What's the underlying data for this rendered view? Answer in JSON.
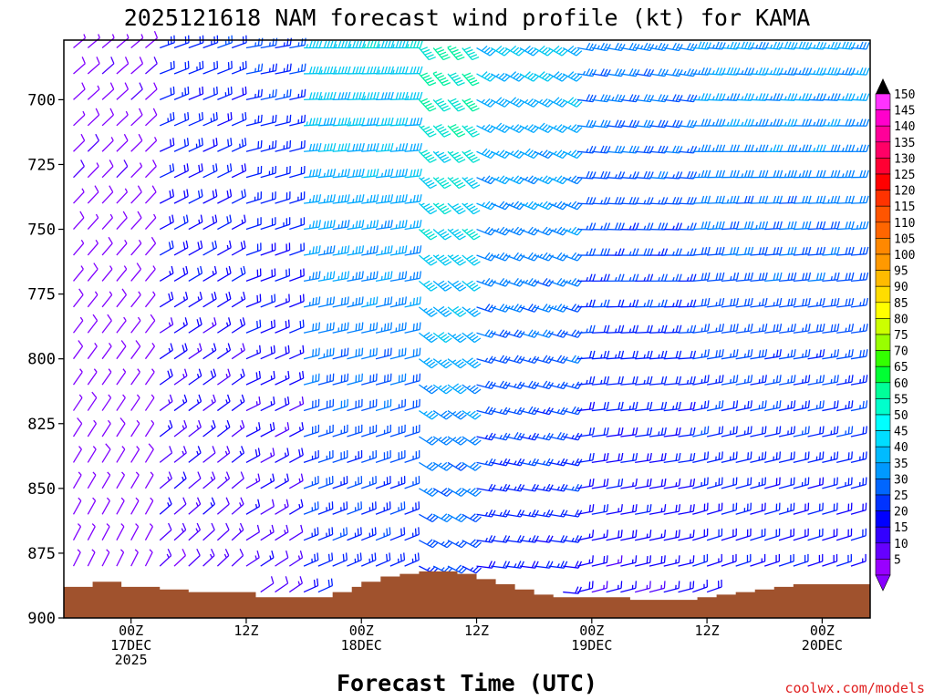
{
  "chart_data": {
    "type": "wind-barb-profile",
    "title": "2025121618 NAM forecast wind profile (kt) for KAMA",
    "xlabel": "Forecast Time (UTC)",
    "ylabel": "",
    "watermark": "coolwx.com/models",
    "y_axis": {
      "direction": "inverted",
      "range": [
        900,
        677
      ],
      "ticks": [
        "700",
        "725",
        "750",
        "775",
        "800",
        "825",
        "850",
        "875",
        "900"
      ]
    },
    "x_axis": {
      "range_hours": [
        -7,
        77
      ],
      "ticks": [
        {
          "hour": 0,
          "lines": [
            "00Z",
            "17DEC",
            "2025"
          ]
        },
        {
          "hour": 12,
          "lines": [
            "12Z"
          ]
        },
        {
          "hour": 24,
          "lines": [
            "00Z",
            "18DEC"
          ]
        },
        {
          "hour": 36,
          "lines": [
            "12Z"
          ]
        },
        {
          "hour": 48,
          "lines": [
            "00Z",
            "19DEC"
          ]
        },
        {
          "hour": 60,
          "lines": [
            "12Z"
          ]
        },
        {
          "hour": 72,
          "lines": [
            "00Z",
            "20DEC"
          ]
        }
      ]
    },
    "colorbar": {
      "labels": [
        "150",
        "145",
        "140",
        "135",
        "130",
        "125",
        "120",
        "115",
        "110",
        "105",
        "100",
        "95",
        "90",
        "85",
        "80",
        "75",
        "70",
        "65",
        "60",
        "55",
        "50",
        "45",
        "40",
        "35",
        "30",
        "25",
        "20",
        "15",
        "10",
        "5"
      ],
      "colors": [
        "#ff33ff",
        "#ff00cc",
        "#ff0099",
        "#ff0066",
        "#ff0033",
        "#ff0000",
        "#ff3300",
        "#ff5500",
        "#ff6600",
        "#ff8800",
        "#ff9900",
        "#ffbb00",
        "#ffdd00",
        "#ffff00",
        "#ccff00",
        "#99ff00",
        "#33ff00",
        "#00ff33",
        "#00ff99",
        "#00ffcc",
        "#00ffff",
        "#00ddff",
        "#00bbff",
        "#0099ff",
        "#0066ff",
        "#0033ff",
        "#0000ff",
        "#3300ff",
        "#6600ff",
        "#9900ff"
      ],
      "colors_bottom_up": [
        "#8000ff",
        "#5000ff",
        "#1000ff",
        "#0020ff",
        "#0050ff",
        "#0080ff",
        "#00a8ff",
        "#00c8f0",
        "#00e0d0",
        "#00f0a0"
      ]
    },
    "terrain_color": "#a0522d",
    "terrain_pressure_by_hour": [
      [
        -7,
        888
      ],
      [
        -5,
        888
      ],
      [
        -4,
        886
      ],
      [
        -2,
        886
      ],
      [
        -1,
        888
      ],
      [
        2,
        888
      ],
      [
        3,
        889
      ],
      [
        5,
        889
      ],
      [
        6,
        890
      ],
      [
        12,
        890
      ],
      [
        13,
        892
      ],
      [
        20,
        892
      ],
      [
        21,
        890
      ],
      [
        23,
        888
      ],
      [
        24,
        886
      ],
      [
        26,
        884
      ],
      [
        28,
        883
      ],
      [
        30,
        882
      ],
      [
        33,
        882
      ],
      [
        34,
        883
      ],
      [
        36,
        885
      ],
      [
        38,
        887
      ],
      [
        40,
        889
      ],
      [
        42,
        891
      ],
      [
        44,
        892
      ],
      [
        51,
        892
      ],
      [
        52,
        893
      ],
      [
        56,
        893
      ],
      [
        58,
        893
      ],
      [
        59,
        892
      ],
      [
        61,
        891
      ],
      [
        63,
        890
      ],
      [
        65,
        889
      ],
      [
        67,
        888
      ],
      [
        69,
        887
      ],
      [
        71,
        887
      ],
      [
        77,
        887
      ]
    ],
    "wind_field": {
      "hour_step": 1.5,
      "hour_start": -6,
      "hour_end": 76,
      "pressure_levels": [
        680,
        690,
        700,
        710,
        720,
        730,
        740,
        750,
        760,
        770,
        780,
        790,
        800,
        810,
        820,
        830,
        840,
        850,
        860,
        870,
        880,
        890,
        896
      ],
      "regimes": [
        {
          "hours": [
            -6,
            3
          ],
          "speed_kt": 8,
          "dir_deg": 230
        },
        {
          "hours": [
            3,
            12
          ],
          "speed_kt": 20,
          "dir_deg": 250
        },
        {
          "hours": [
            12,
            18
          ],
          "speed_kt": 22,
          "dir_deg": 260
        },
        {
          "hours": [
            18,
            30
          ],
          "speed_kt": 38,
          "dir_deg": 270
        },
        {
          "hours": [
            30,
            36
          ],
          "speed_kt": 45,
          "dir_deg": 320
        },
        {
          "hours": [
            36,
            46
          ],
          "speed_kt": 35,
          "dir_deg": 300
        },
        {
          "hours": [
            46,
            58
          ],
          "speed_kt": 28,
          "dir_deg": 280
        },
        {
          "hours": [
            58,
            76
          ],
          "speed_kt": 32,
          "dir_deg": 275
        }
      ]
    }
  }
}
